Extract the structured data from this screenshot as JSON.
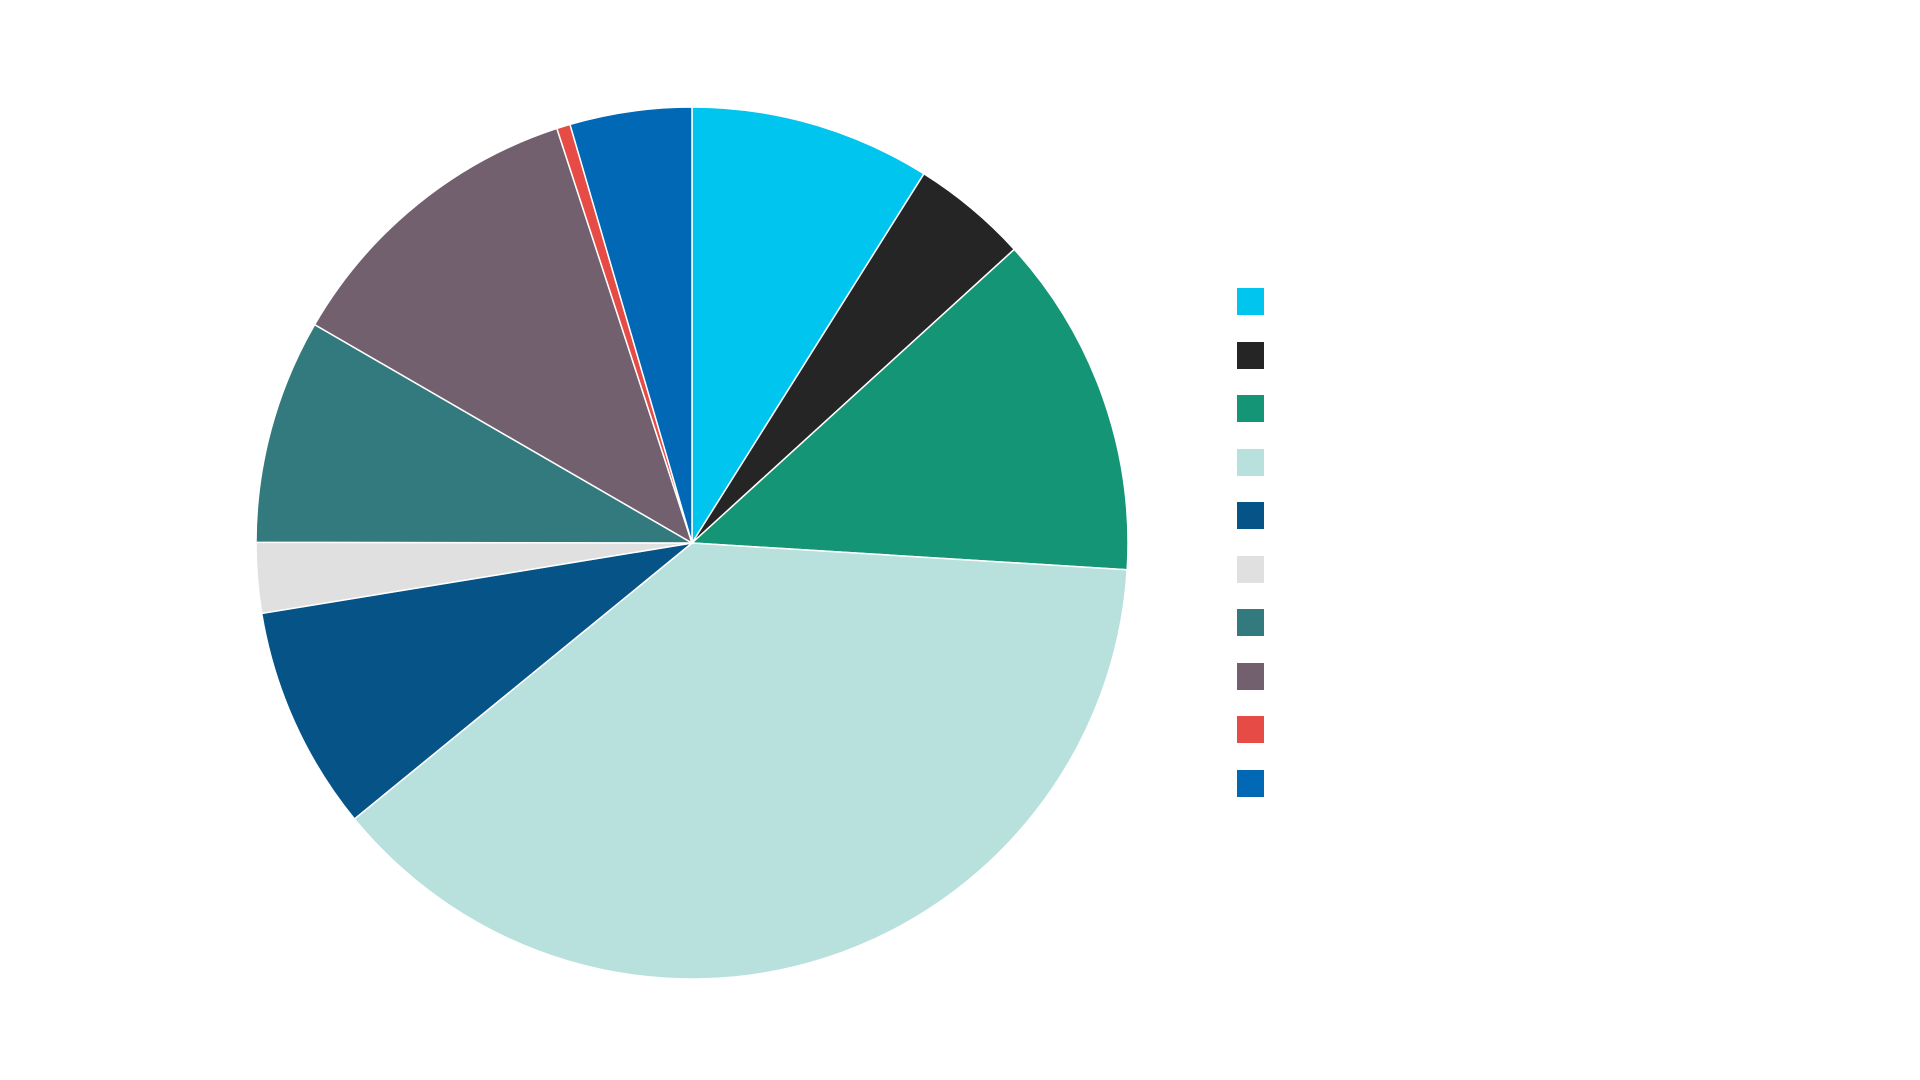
{
  "chart_data": {
    "type": "pie",
    "title": "",
    "start_angle": "top",
    "direction": "clockwise",
    "legend_position": "right",
    "slices": [
      {
        "name": "",
        "value": 8.9,
        "color": "#00C5EE"
      },
      {
        "name": "",
        "value": 4.3,
        "color": "#252525"
      },
      {
        "name": "",
        "value": 12.7,
        "color": "#149575"
      },
      {
        "name": "",
        "value": 38.0,
        "color": "#B8E1DE"
      },
      {
        "name": "",
        "value": 8.3,
        "color": "#065388"
      },
      {
        "name": "",
        "value": 2.6,
        "color": "#E0E0E0"
      },
      {
        "name": "",
        "value": 8.3,
        "color": "#337A7E"
      },
      {
        "name": "",
        "value": 11.6,
        "color": "#72606E"
      },
      {
        "name": "",
        "value": 0.5,
        "color": "#E64B45"
      },
      {
        "name": "",
        "value": 4.5,
        "color": "#0068B4"
      }
    ]
  }
}
